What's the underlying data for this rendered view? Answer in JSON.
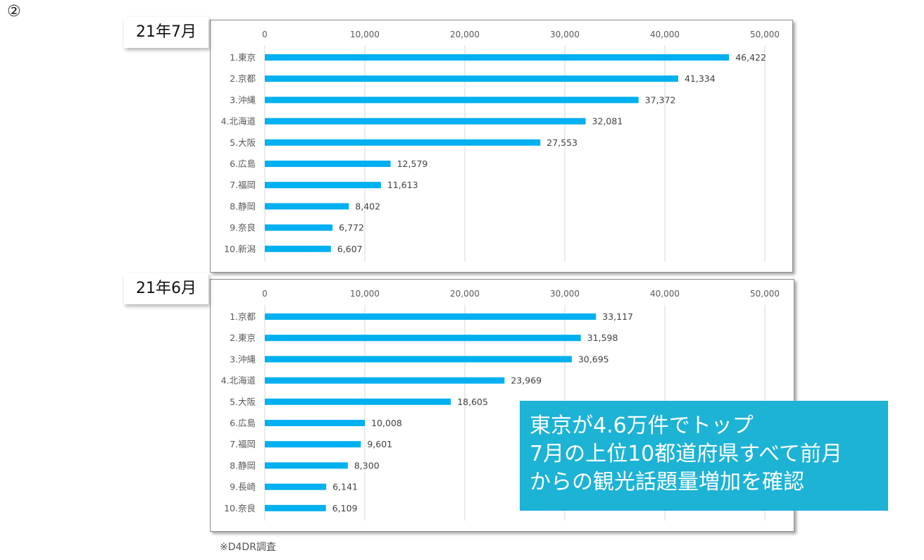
{
  "marker": "②",
  "source_note": "※D4DR調査",
  "callout": {
    "lines": [
      "東京が4.6万件でトップ",
      "7月の上位10都道府県すべて前月",
      "からの観光話題量増加を確認"
    ]
  },
  "colors": {
    "bar": "#00b0f0",
    "callout_bg": "#1cb3d5",
    "grid": "#d9d9d9"
  },
  "chart_data": [
    {
      "type": "bar",
      "orientation": "horizontal",
      "period_label": "21年7月",
      "categories": [
        "1.東京",
        "2.京都",
        "3.沖縄",
        "4.北海道",
        "5.大阪",
        "6.広島",
        "7.福岡",
        "8.静岡",
        "9.奈良",
        "10.新潟"
      ],
      "values": [
        46422,
        41334,
        37372,
        32081,
        27553,
        12579,
        11613,
        8402,
        6772,
        6607
      ],
      "data_labels": [
        "46,422",
        "41,334",
        "37,372",
        "32,081",
        "27,553",
        "12,579",
        "11,613",
        "8,402",
        "6,772",
        "6,607"
      ],
      "xlim": [
        0,
        50000
      ],
      "x_ticks": [
        0,
        10000,
        20000,
        30000,
        40000,
        50000
      ],
      "x_tick_labels": [
        "0",
        "10,000",
        "20,000",
        "30,000",
        "40,000",
        "50,000"
      ],
      "x_axis_position": "top",
      "grid": true,
      "legend": "none"
    },
    {
      "type": "bar",
      "orientation": "horizontal",
      "period_label": "21年6月",
      "categories": [
        "1.京都",
        "2.東京",
        "3.沖縄",
        "4.北海道",
        "5.大阪",
        "6.広島",
        "7.福岡",
        "8.静岡",
        "9.長崎",
        "10.奈良"
      ],
      "values": [
        33117,
        31598,
        30695,
        23969,
        18605,
        10008,
        9601,
        8300,
        6141,
        6109
      ],
      "data_labels": [
        "33,117",
        "31,598",
        "30,695",
        "23,969",
        "18,605",
        "10,008",
        "9,601",
        "8,300",
        "6,141",
        "6,109"
      ],
      "xlim": [
        0,
        50000
      ],
      "x_ticks": [
        0,
        10000,
        20000,
        30000,
        40000,
        50000
      ],
      "x_tick_labels": [
        "0",
        "10,000",
        "20,000",
        "30,000",
        "40,000",
        "50,000"
      ],
      "x_axis_position": "top",
      "grid": true,
      "legend": "none"
    }
  ]
}
